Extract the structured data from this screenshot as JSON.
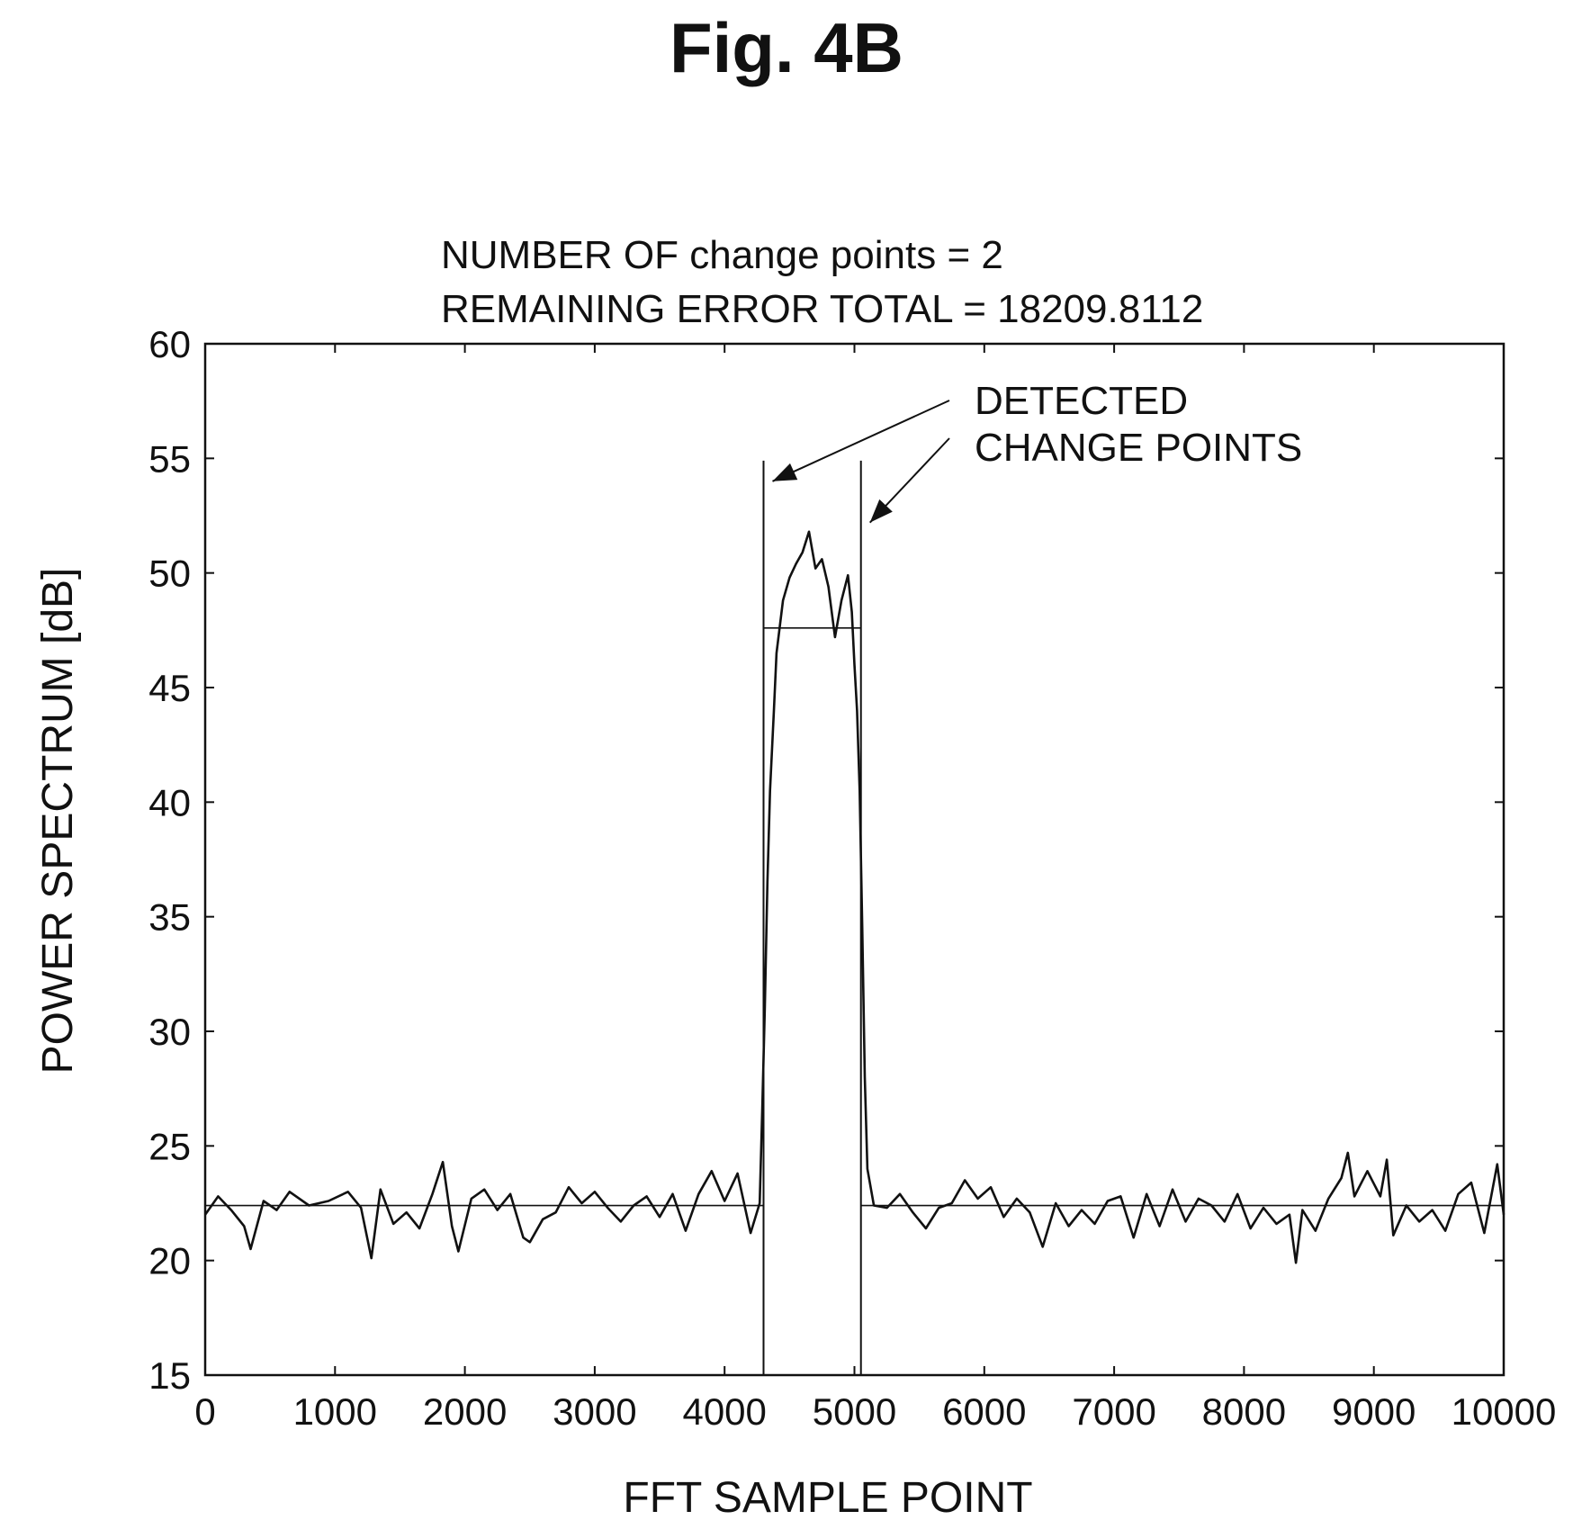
{
  "figure_label": "Fig. 4B",
  "chart_data": {
    "type": "line",
    "title_lines": [
      "NUMBER OF change points = 2",
      "REMAINING ERROR TOTAL = 18209.8112"
    ],
    "xlabel": "FFT SAMPLE POINT",
    "ylabel": "POWER SPECTRUM [dB]",
    "xlim": [
      0,
      10000
    ],
    "ylim": [
      15,
      60
    ],
    "xticks": [
      0,
      1000,
      2000,
      3000,
      4000,
      5000,
      6000,
      7000,
      8000,
      9000,
      10000
    ],
    "yticks": [
      15,
      20,
      25,
      30,
      35,
      40,
      45,
      50,
      55,
      60
    ],
    "grid": false,
    "series": [
      {
        "x": [
          0,
          100,
          200,
          300,
          350,
          450,
          550,
          650,
          800,
          950,
          1100,
          1200,
          1280,
          1350,
          1450,
          1550,
          1650,
          1750,
          1830,
          1900,
          1950,
          2050,
          2150,
          2250,
          2350,
          2450,
          2500,
          2600,
          2700,
          2800,
          2900,
          3000,
          3100,
          3200,
          3300,
          3400,
          3500,
          3600,
          3700,
          3800,
          3900,
          4000,
          4100,
          4200,
          4270,
          4290,
          4310,
          4330,
          4350,
          4380,
          4400,
          4450,
          4500,
          4550,
          4600,
          4650,
          4700,
          4750,
          4800,
          4850,
          4900,
          4950,
          4980,
          5000,
          5020,
          5040,
          5060,
          5080,
          5100,
          5150,
          5250,
          5350,
          5450,
          5550,
          5650,
          5750,
          5850,
          5950,
          6050,
          6150,
          6250,
          6350,
          6450,
          6550,
          6650,
          6750,
          6850,
          6950,
          7050,
          7150,
          7250,
          7350,
          7450,
          7550,
          7650,
          7750,
          7850,
          7950,
          8050,
          8150,
          8250,
          8350,
          8400,
          8450,
          8550,
          8650,
          8750,
          8800,
          8850,
          8950,
          9050,
          9100,
          9150,
          9250,
          9350,
          9450,
          9550,
          9650,
          9750,
          9850,
          9950,
          10000
        ],
        "y": [
          22.0,
          22.8,
          22.2,
          21.5,
          20.5,
          22.6,
          22.2,
          23.0,
          22.4,
          22.6,
          23.0,
          22.3,
          20.1,
          23.1,
          21.6,
          22.1,
          21.4,
          22.9,
          24.3,
          21.5,
          20.4,
          22.7,
          23.1,
          22.2,
          22.9,
          21.0,
          20.8,
          21.8,
          22.1,
          23.2,
          22.5,
          23.0,
          22.3,
          21.7,
          22.4,
          22.8,
          21.9,
          22.9,
          21.3,
          22.9,
          23.9,
          22.6,
          23.8,
          21.2,
          22.5,
          26.5,
          31.0,
          36.5,
          40.5,
          44.0,
          46.5,
          48.8,
          49.8,
          50.4,
          50.9,
          51.8,
          50.2,
          50.6,
          49.4,
          47.2,
          48.8,
          49.9,
          48.3,
          46.0,
          44.0,
          40.5,
          34.5,
          28.0,
          24.0,
          22.4,
          22.3,
          22.9,
          22.1,
          21.4,
          22.3,
          22.5,
          23.5,
          22.7,
          23.2,
          21.9,
          22.7,
          22.1,
          20.6,
          22.5,
          21.5,
          22.2,
          21.6,
          22.6,
          22.8,
          21.0,
          22.9,
          21.5,
          23.1,
          21.7,
          22.7,
          22.4,
          21.7,
          22.9,
          21.4,
          22.3,
          21.6,
          22.0,
          19.9,
          22.2,
          21.3,
          22.7,
          23.6,
          24.7,
          22.8,
          23.9,
          22.8,
          24.4,
          21.1,
          22.4,
          21.7,
          22.2,
          21.3,
          22.9,
          23.4,
          21.2,
          24.2,
          22.0
        ]
      }
    ],
    "segment_means": [
      {
        "x_start": 0,
        "x_end": 4300,
        "value": 22.4
      },
      {
        "x_start": 4300,
        "x_end": 5050,
        "value": 47.6
      },
      {
        "x_start": 5050,
        "x_end": 10000,
        "value": 22.4
      }
    ],
    "change_points": [
      4300,
      5050
    ],
    "annotation": {
      "lines": [
        "DETECTED",
        "CHANGE POINTS"
      ]
    }
  }
}
